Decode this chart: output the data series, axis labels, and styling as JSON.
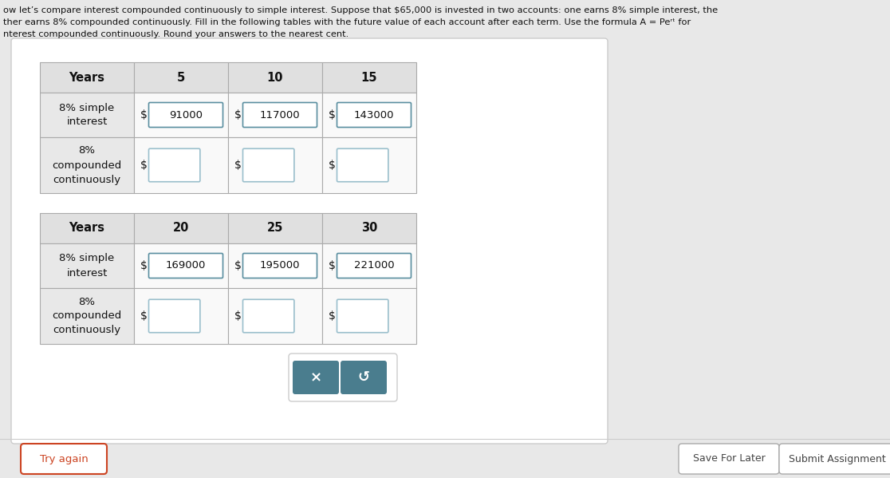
{
  "bg_color": "#e8e8e8",
  "content_bg": "#f4f4f4",
  "header_text_lines": [
    "ow let’s compare interest compounded continuously to simple interest. Suppose that $65,000 is invested in two accounts: one earns 8% simple interest, the",
    "ther earns 8% compounded continuously. Fill in the following tables with the future value of each account after each term. Use the formula A = Peʳᵗ for",
    "nterest compounded continuously. Round your answers to the nearest cent."
  ],
  "table1": {
    "col_headers": [
      "Years",
      "5",
      "10",
      "15"
    ],
    "rows": [
      {
        "label": "8% simple\ninterest",
        "values": [
          "91000",
          "117000",
          "143000"
        ],
        "filled": true
      },
      {
        "label": "8%\ncompounded\ncontinuously",
        "values": [
          "",
          "",
          ""
        ],
        "filled": false
      }
    ]
  },
  "table2": {
    "col_headers": [
      "Years",
      "20",
      "25",
      "30"
    ],
    "rows": [
      {
        "label": "8% simple\ninterest",
        "values": [
          "169000",
          "195000",
          "221000"
        ],
        "filled": true
      },
      {
        "label": "8%\ncompounded\ncontinuously",
        "values": [
          "",
          "",
          ""
        ],
        "filled": false
      }
    ]
  },
  "button_x_label": "×",
  "button_undo_label": "↺",
  "try_again_label": "Try again",
  "save_later_label": "Save For Later",
  "submit_label": "Submit Assignment",
  "table_border_color": "#aaaaaa",
  "header_fill": "#e0e0e0",
  "cell_fill_white": "#f9f9f9",
  "cell_fill_gray": "#e8e8e8",
  "input_box_color": "#ffffff",
  "input_box_border_filled": "#5a8fa0",
  "input_box_border_empty": "#9abfcc",
  "button_teal_bg": "#4a7d8e",
  "button_teal_fg": "#ffffff",
  "try_again_border": "#cc4422",
  "try_again_fg": "#cc4422",
  "bottom_btn_border": "#aaaaaa",
  "bottom_btn_fg": "#444444"
}
